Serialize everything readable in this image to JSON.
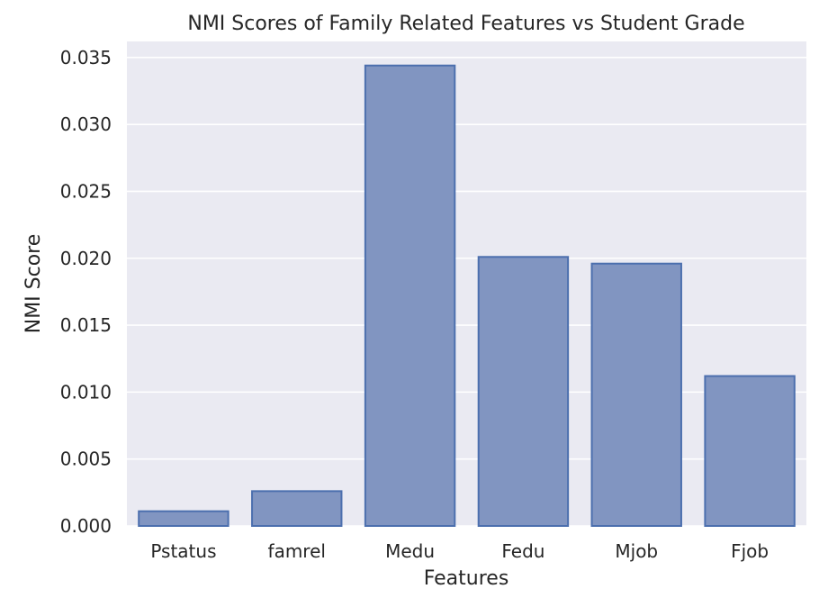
{
  "chart_data": {
    "type": "bar",
    "title": "NMI Scores of Family Related Features vs Student Grade",
    "xlabel": "Features",
    "ylabel": "NMI Score",
    "categories": [
      "Pstatus",
      "famrel",
      "Medu",
      "Fedu",
      "Mjob",
      "Fjob"
    ],
    "values": [
      0.0011,
      0.0026,
      0.0344,
      0.0201,
      0.0196,
      0.0112
    ],
    "ylim": [
      0,
      0.0362
    ],
    "yticks": [
      0.0,
      0.005,
      0.01,
      0.015,
      0.02,
      0.025,
      0.03,
      0.035
    ],
    "ytick_labels": [
      "0.000",
      "0.005",
      "0.010",
      "0.015",
      "0.020",
      "0.025",
      "0.030",
      "0.035"
    ],
    "grid": true,
    "colors": {
      "bar_fill": "#8195c1",
      "bar_edge": "#4c6fae",
      "plot_background": "#eaeaf2",
      "grid": "#ffffff"
    }
  }
}
